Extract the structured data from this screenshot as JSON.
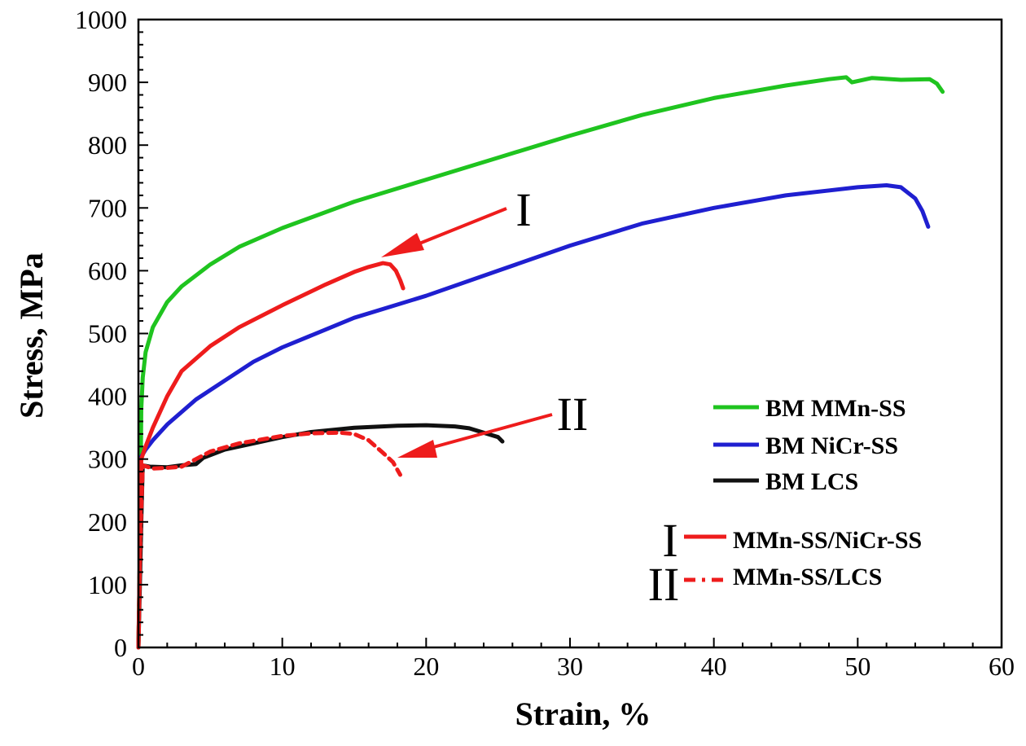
{
  "chart_data": {
    "type": "line",
    "xlabel": "Strain, %",
    "ylabel": "Stress, MPa",
    "xlim": [
      0,
      60
    ],
    "ylim": [
      0,
      1000
    ],
    "xticks": [
      "0",
      "10",
      "20",
      "30",
      "40",
      "50",
      "60"
    ],
    "yticks": [
      "0",
      "100",
      "200",
      "300",
      "400",
      "500",
      "600",
      "700",
      "800",
      "900",
      "1000"
    ],
    "grid": false,
    "series": [
      {
        "name": "BM MMn-SS",
        "color": "#1fc41f",
        "style": "solid",
        "points": [
          [
            0,
            0
          ],
          [
            0.1,
            150
          ],
          [
            0.2,
            380
          ],
          [
            0.3,
            430
          ],
          [
            0.5,
            470
          ],
          [
            1,
            510
          ],
          [
            2,
            550
          ],
          [
            3,
            575
          ],
          [
            5,
            610
          ],
          [
            7,
            638
          ],
          [
            10,
            668
          ],
          [
            15,
            710
          ],
          [
            20,
            745
          ],
          [
            25,
            780
          ],
          [
            30,
            815
          ],
          [
            35,
            848
          ],
          [
            40,
            875
          ],
          [
            45,
            895
          ],
          [
            48,
            905
          ],
          [
            49.2,
            908
          ],
          [
            49.6,
            900
          ],
          [
            51,
            907
          ],
          [
            53,
            904
          ],
          [
            55,
            905
          ],
          [
            55.5,
            898
          ],
          [
            55.9,
            885
          ]
        ]
      },
      {
        "name": "BM NiCr-SS",
        "color": "#1f1fd0",
        "style": "solid",
        "points": [
          [
            0.1,
            300
          ],
          [
            0.5,
            315
          ],
          [
            1,
            330
          ],
          [
            2,
            355
          ],
          [
            4,
            395
          ],
          [
            6,
            425
          ],
          [
            8,
            455
          ],
          [
            10,
            478
          ],
          [
            15,
            525
          ],
          [
            20,
            560
          ],
          [
            25,
            600
          ],
          [
            30,
            640
          ],
          [
            35,
            675
          ],
          [
            40,
            700
          ],
          [
            45,
            720
          ],
          [
            50,
            733
          ],
          [
            52,
            736
          ],
          [
            53,
            733
          ],
          [
            54,
            715
          ],
          [
            54.5,
            695
          ],
          [
            54.9,
            670
          ]
        ]
      },
      {
        "name": "BM LCS",
        "color": "#111111",
        "style": "solid",
        "points": [
          [
            0,
            0
          ],
          [
            0.1,
            100
          ],
          [
            0.2,
            200
          ],
          [
            0.3,
            290
          ],
          [
            0.8,
            288
          ],
          [
            2,
            287
          ],
          [
            3,
            290
          ],
          [
            4,
            292
          ],
          [
            4.5,
            302
          ],
          [
            6,
            315
          ],
          [
            8,
            325
          ],
          [
            10,
            335
          ],
          [
            12,
            343
          ],
          [
            15,
            350
          ],
          [
            18,
            353
          ],
          [
            20,
            354
          ],
          [
            22,
            352
          ],
          [
            23,
            349
          ],
          [
            24,
            342
          ],
          [
            25,
            335
          ],
          [
            25.3,
            328
          ]
        ]
      },
      {
        "name": "MMn-SS/NiCr-SS",
        "color": "#ee1c1c",
        "style": "solid",
        "marker": "I",
        "points": [
          [
            0,
            0
          ],
          [
            0.1,
            150
          ],
          [
            0.2,
            300
          ],
          [
            0.5,
            320
          ],
          [
            1,
            350
          ],
          [
            2,
            400
          ],
          [
            3,
            440
          ],
          [
            5,
            480
          ],
          [
            7,
            510
          ],
          [
            10,
            545
          ],
          [
            13,
            578
          ],
          [
            15,
            598
          ],
          [
            16,
            606
          ],
          [
            17,
            612
          ],
          [
            17.5,
            610
          ],
          [
            17.9,
            600
          ],
          [
            18.2,
            585
          ],
          [
            18.4,
            572
          ]
        ]
      },
      {
        "name": "MMn-SS/LCS",
        "color": "#ee1c1c",
        "style": "dashed",
        "marker": "II",
        "points": [
          [
            0,
            0
          ],
          [
            0.1,
            150
          ],
          [
            0.3,
            290
          ],
          [
            1,
            285
          ],
          [
            2,
            286
          ],
          [
            3,
            288
          ],
          [
            4,
            300
          ],
          [
            5,
            312
          ],
          [
            7,
            325
          ],
          [
            10,
            337
          ],
          [
            12,
            341
          ],
          [
            14,
            342
          ],
          [
            15,
            340
          ],
          [
            16,
            330
          ],
          [
            17,
            310
          ],
          [
            17.7,
            295
          ],
          [
            18.2,
            275
          ]
        ]
      }
    ],
    "annotations": [
      {
        "label": "I",
        "target_series": "MMn-SS/NiCr-SS"
      },
      {
        "label": "II",
        "target_series": "MMn-SS/LCS"
      }
    ],
    "legend_position": "right"
  }
}
